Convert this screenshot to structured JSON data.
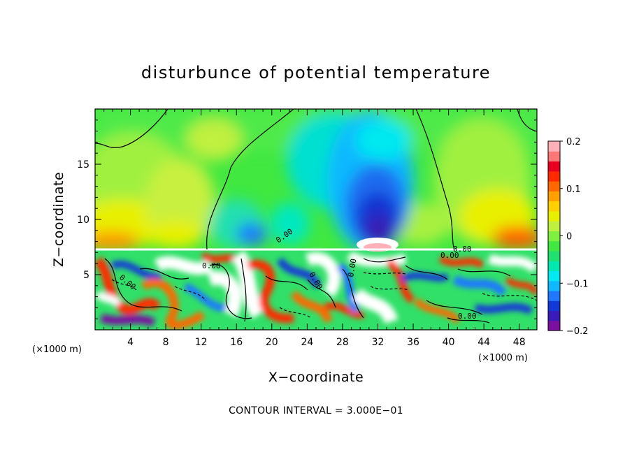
{
  "chart_data": {
    "type": "heatmap",
    "title": "disturbunce of potential temperature",
    "xlabel": "X−coordinate",
    "ylabel": "Z−coordinate",
    "x_unit": "(×1000 m)",
    "x_unit_right": "(×1000 m)",
    "x_ticks": [
      "4",
      "8",
      "12",
      "16",
      "20",
      "24",
      "28",
      "32",
      "36",
      "40",
      "44",
      "48"
    ],
    "y_ticks": [
      "5",
      "10",
      "15"
    ],
    "xlim": [
      0,
      50
    ],
    "ylim": [
      0,
      20
    ],
    "colorbar": {
      "min": -0.2,
      "max": 0.2,
      "tick_labels": [
        "0.2",
        "0.1",
        "0",
        "−0.1",
        "−0.2"
      ],
      "tick_values": [
        0.2,
        0.1,
        0,
        -0.1,
        -0.2
      ]
    },
    "contour_labels": [
      "0.00",
      "0.00",
      "0.00",
      "0.00",
      "0.00",
      "0.00",
      "0.00",
      "0.00"
    ],
    "note": "CONTOUR INTERVAL = 3.000E−01"
  },
  "colors": {
    "palette": [
      "#7a0fa0",
      "#3a1ab8",
      "#1238d8",
      "#1f78ff",
      "#10b8ff",
      "#00e8f0",
      "#00e8b0",
      "#20e070",
      "#40e840",
      "#80f040",
      "#c0f040",
      "#e8f000",
      "#ffd000",
      "#ffa000",
      "#ff6800",
      "#ff2a00",
      "#e80020",
      "#ff7878",
      "#ffb0b8"
    ],
    "zero_contour": "#000000",
    "background": "#ffffff"
  }
}
